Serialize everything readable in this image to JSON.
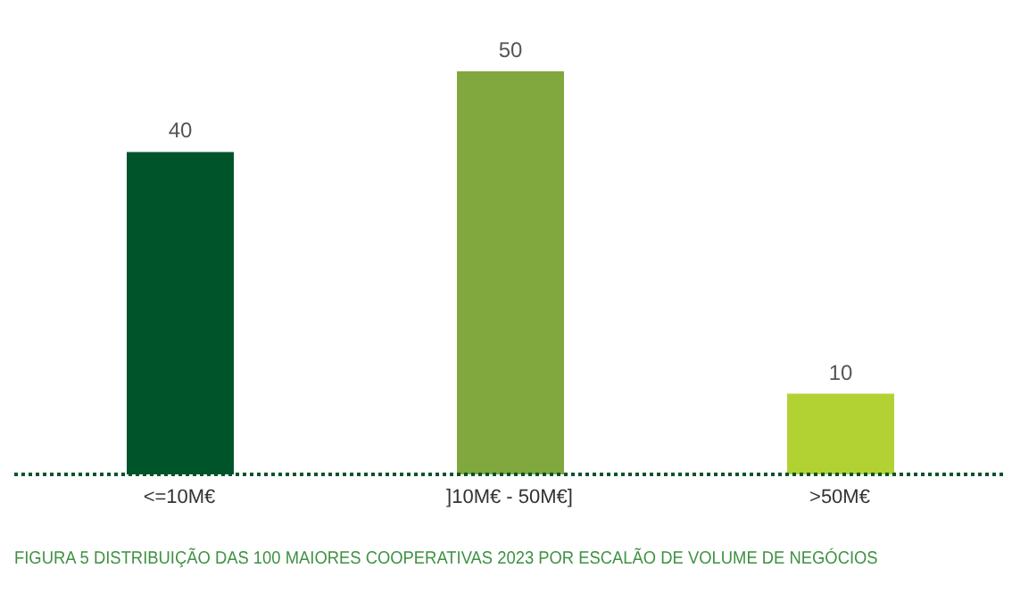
{
  "chart_data": {
    "type": "bar",
    "title": "FIGURA 5  DISTRIBUIÇÃO DAS 100 MAIORES COOPERATIVAS 2023 POR ESCALÃO DE VOLUME DE NEGÓCIOS",
    "categories": [
      "<=10M€",
      "]10M€ - 50M€]",
      ">50M€"
    ],
    "values": [
      40,
      50,
      10
    ],
    "colors": [
      "#00542a",
      "#80a83e",
      "#b2d234"
    ],
    "data_labels": true,
    "grid": false,
    "legend": false,
    "tick_labels": "x"
  }
}
